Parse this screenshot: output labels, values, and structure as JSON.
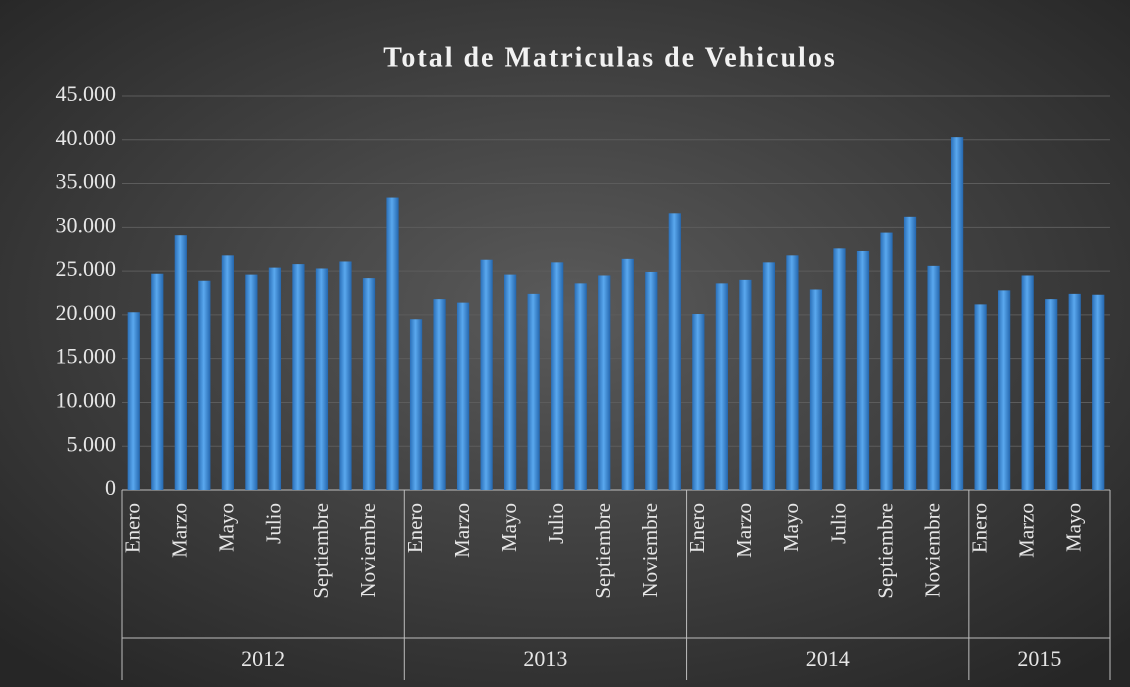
{
  "chart_data": {
    "type": "bar",
    "title": "Total de Matriculas de Vehiculos",
    "categories": [
      "Enero",
      null,
      "Marzo",
      null,
      "Mayo",
      null,
      "Julio",
      null,
      "Septiembre",
      null,
      "Noviembre",
      null,
      "Enero",
      null,
      "Marzo",
      null,
      "Mayo",
      null,
      "Julio",
      null,
      "Septiembre",
      null,
      "Noviembre",
      null,
      "Enero",
      null,
      "Marzo",
      null,
      "Mayo",
      null,
      "Julio",
      null,
      "Septiembre",
      null,
      "Noviembre",
      null,
      "Enero",
      null,
      "Marzo",
      null,
      "Mayo",
      null
    ],
    "groups": [
      "2012",
      "2013",
      "2014",
      "2015"
    ],
    "values": [
      20300,
      24700,
      29100,
      23900,
      26800,
      24600,
      25400,
      25800,
      25300,
      26100,
      24200,
      33400,
      19500,
      21800,
      21400,
      26300,
      24600,
      22400,
      26000,
      23600,
      24500,
      26400,
      24900,
      31600,
      20100,
      23600,
      24000,
      26000,
      26800,
      22900,
      27600,
      27300,
      29400,
      31200,
      25600,
      40300,
      21200,
      22800,
      24500,
      21800,
      22400,
      22300
    ],
    "color": "#3a8ad6",
    "ylim": [
      0,
      45000
    ],
    "yticks": [
      0,
      {
        "value": 5000,
        "label": "5.000"
      },
      {
        "value": 10000,
        "label": "10.000"
      },
      {
        "value": 15000,
        "label": "15.000"
      },
      {
        "value": 20000,
        "label": "20.000"
      },
      {
        "value": 25000,
        "label": "25.000"
      },
      {
        "value": 30000,
        "label": "30.000"
      },
      {
        "value": 35000,
        "label": "35.000"
      },
      {
        "value": 40000,
        "label": "40.000"
      },
      {
        "value": 45000,
        "label": "45.000"
      }
    ],
    "grid": true
  }
}
